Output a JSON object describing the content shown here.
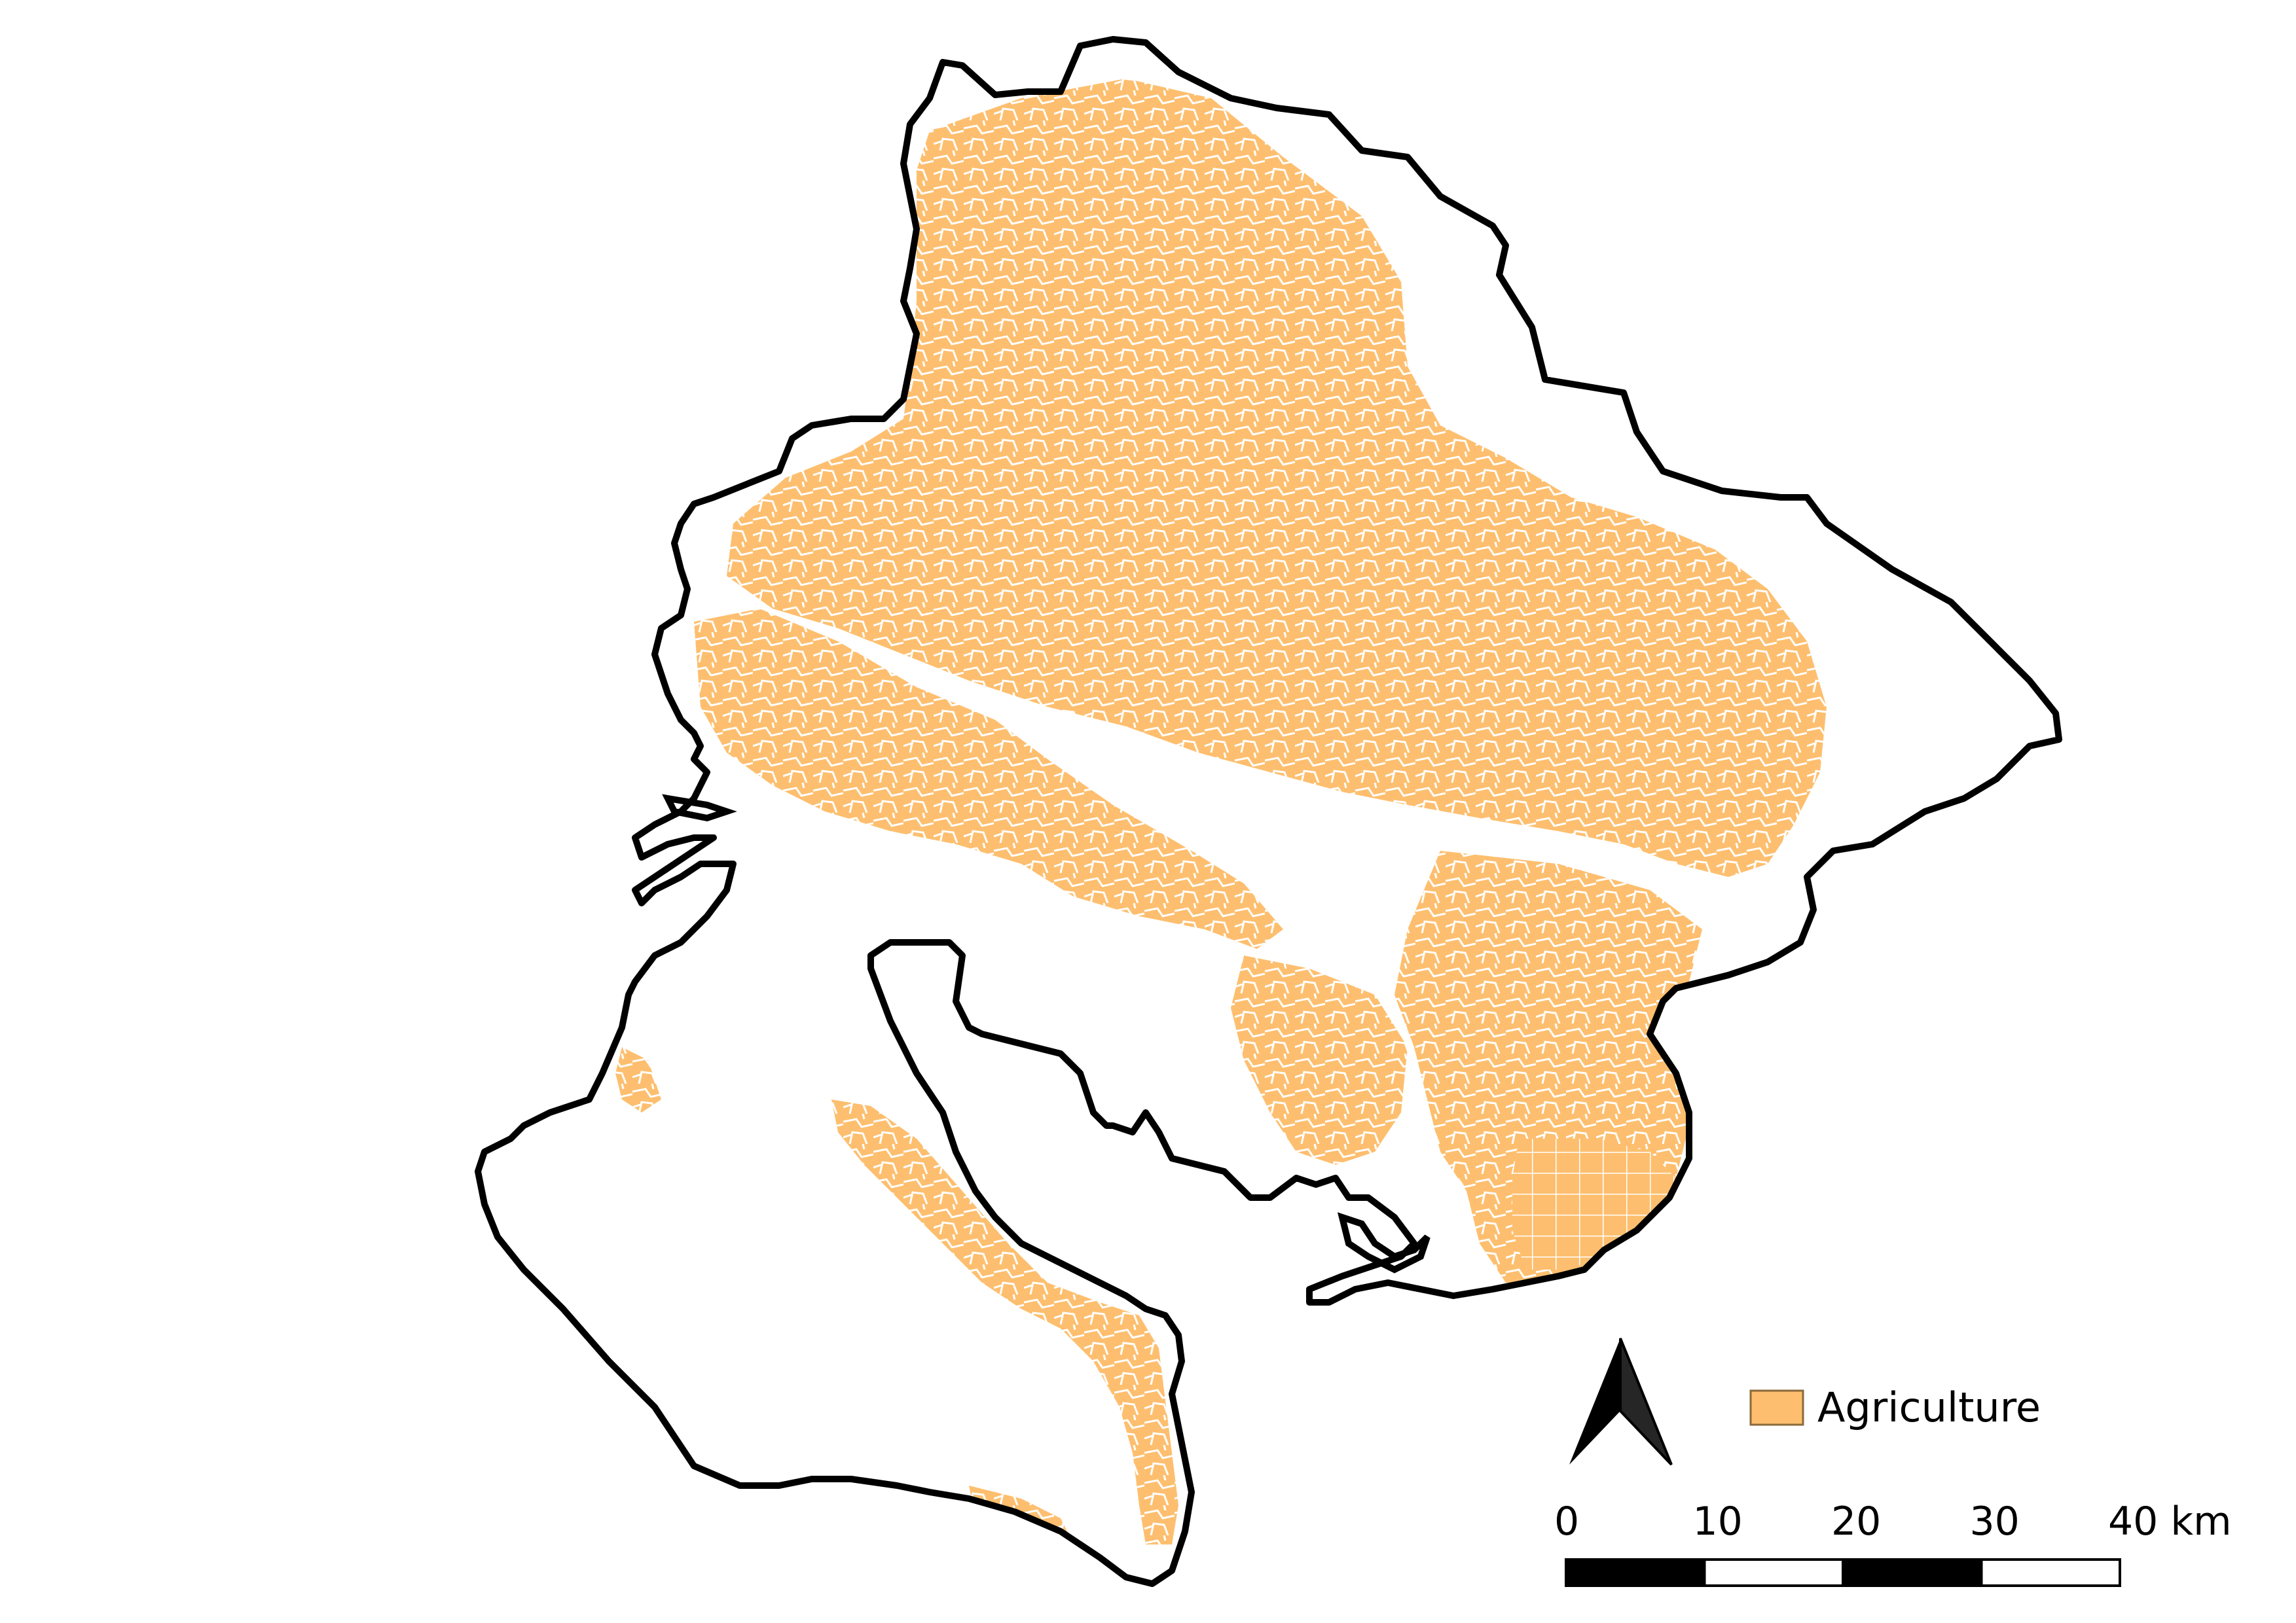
{
  "map": {
    "legend": {
      "items": [
        {
          "label": "Agriculture",
          "color": "#fdbf6f"
        }
      ]
    },
    "scale_bar": {
      "ticks": [
        "0",
        "10",
        "20",
        "30",
        "40 km"
      ],
      "max_km": 40,
      "segment_km": 10,
      "colors": [
        "#000000",
        "#ffffff"
      ]
    },
    "north_arrow": {
      "icon": "north-arrow-icon"
    },
    "colors": {
      "boundary": "#000000",
      "agriculture": "#fdbf6f",
      "background": "#ffffff"
    }
  }
}
